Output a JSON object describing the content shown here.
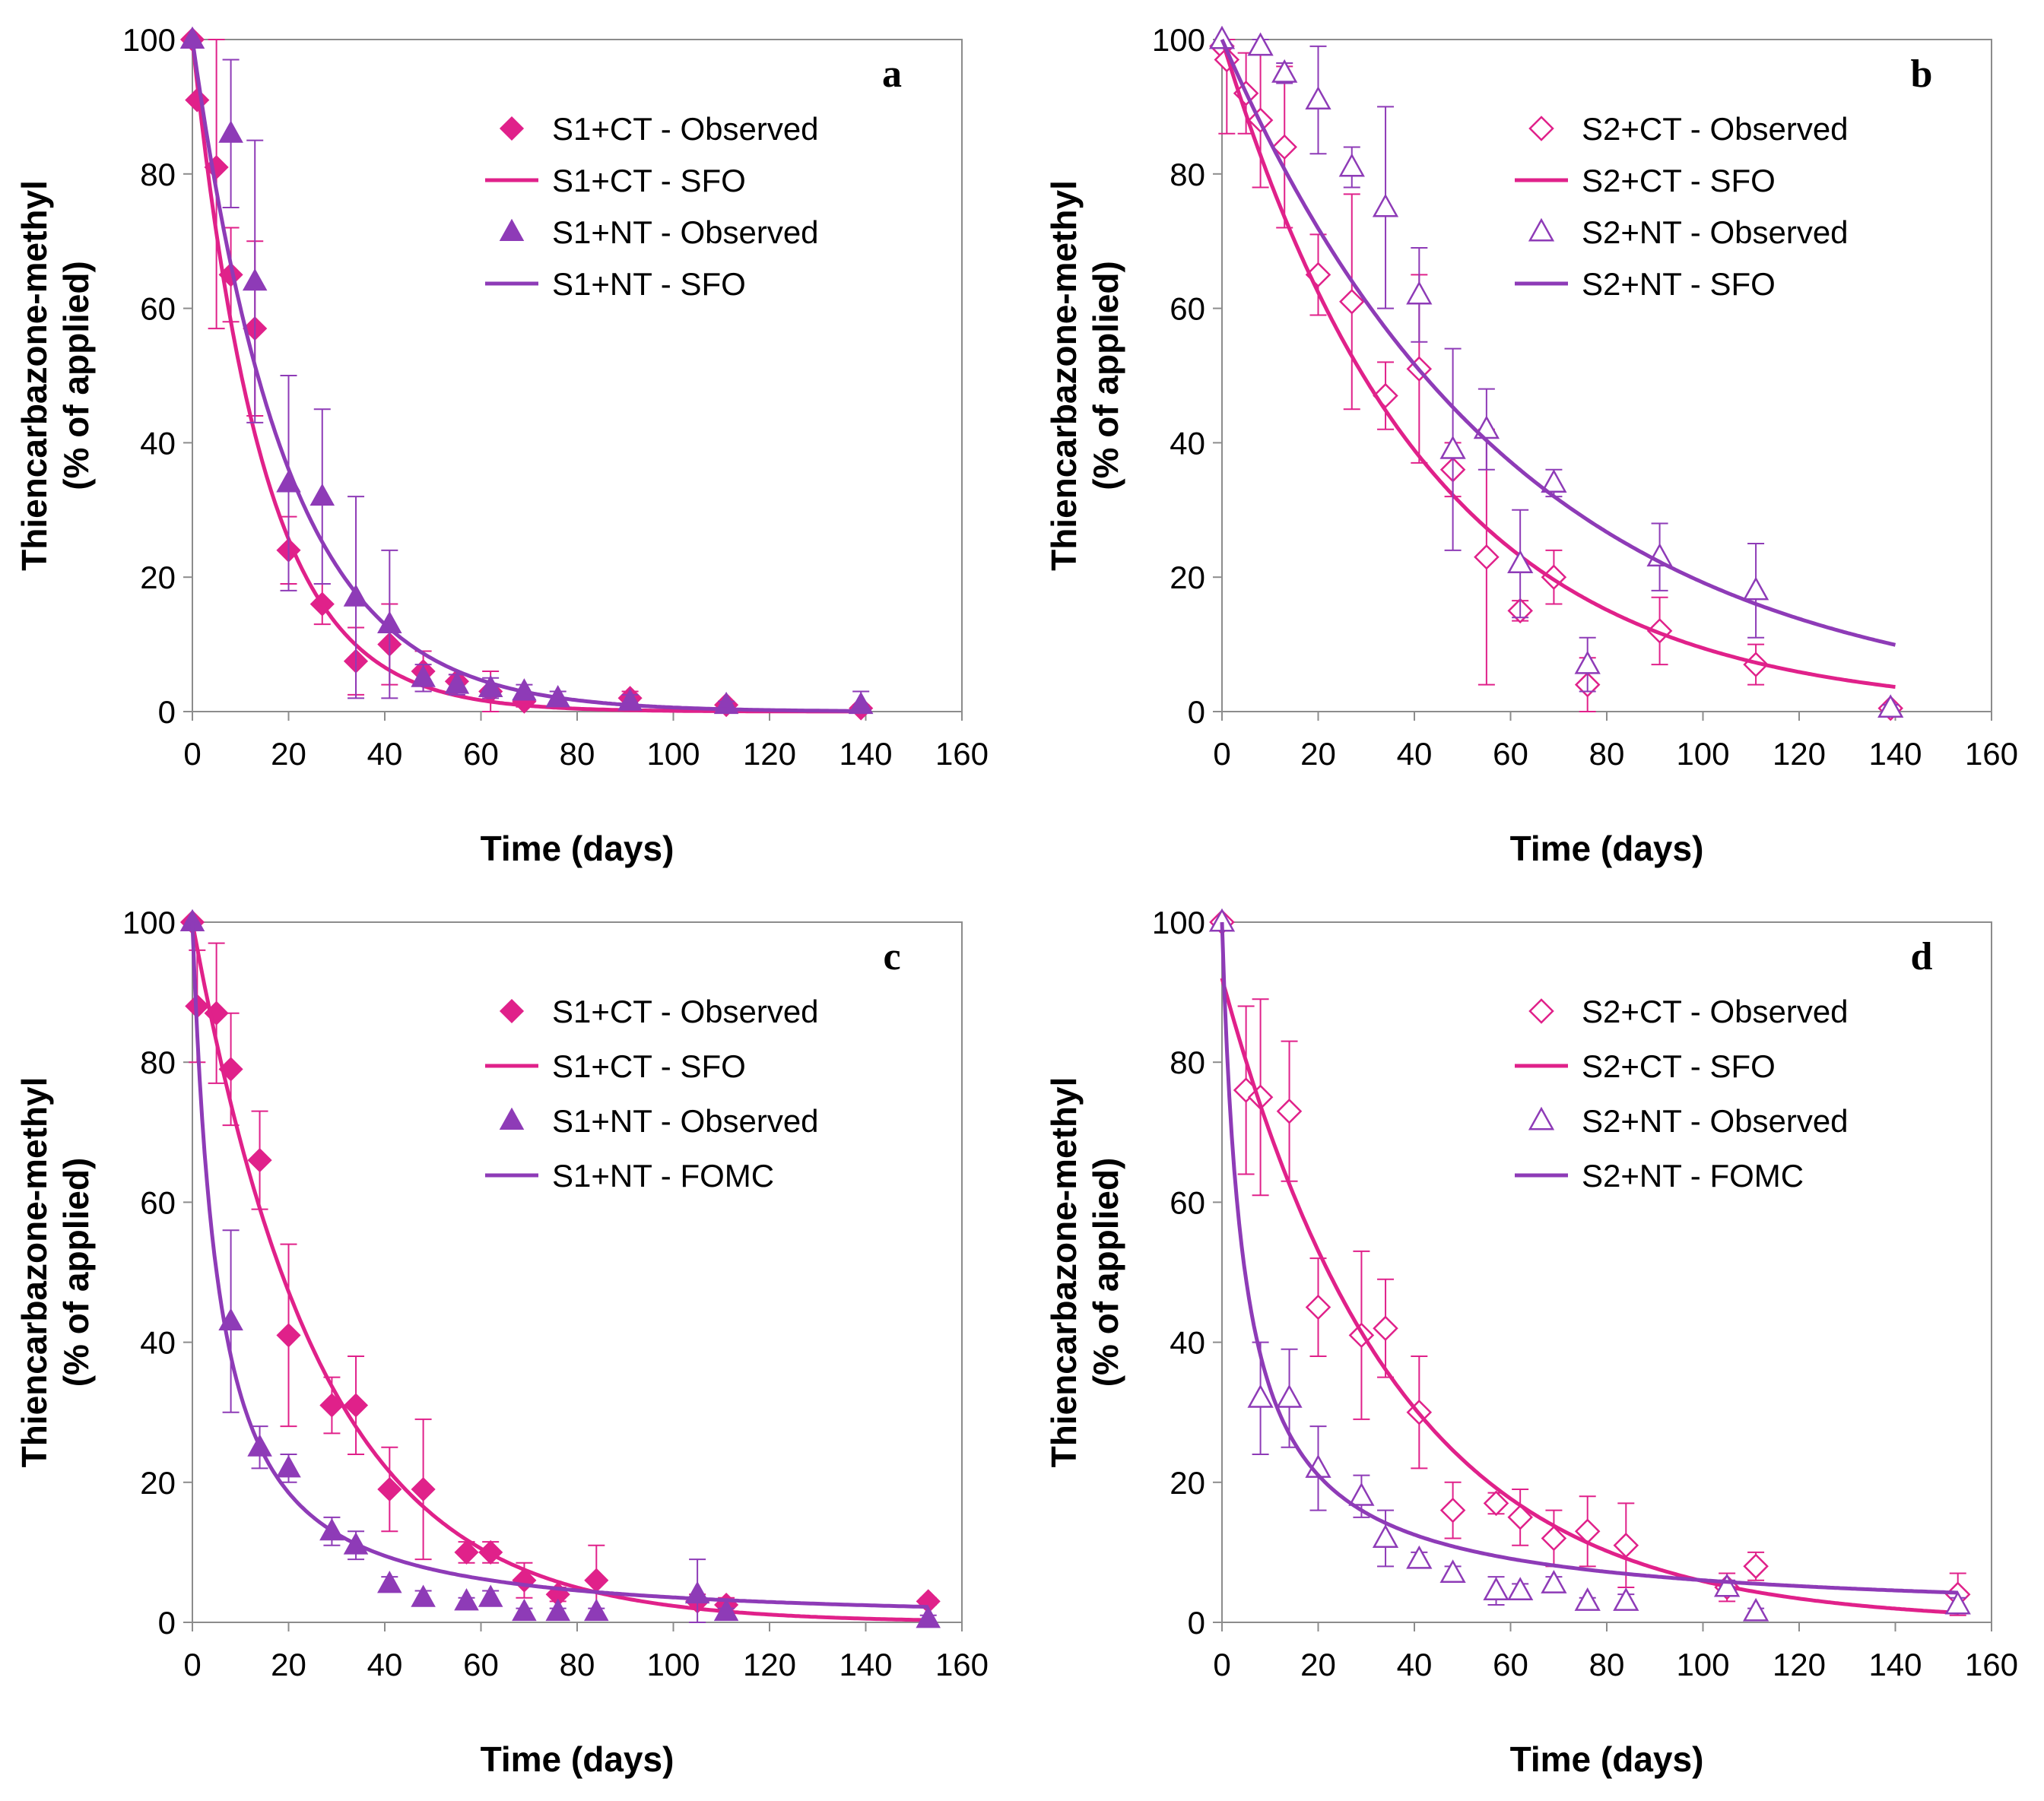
{
  "colors": {
    "ct": "#E0218A",
    "nt": "#8E3BB7",
    "axis": "#8c8c8c",
    "text": "#000000"
  },
  "chart_data": [
    {
      "type": "scatter",
      "panel": "a",
      "xlabel": "Time (days)",
      "ylabel": "Thiencarbazone-methyl",
      "ylabel2": "(% of applied)",
      "xlim": [
        0,
        160
      ],
      "ylim": [
        0,
        100
      ],
      "xticks": [
        "0",
        "20",
        "40",
        "60",
        "80",
        "100",
        "120",
        "140",
        "160"
      ],
      "yticks": [
        "0",
        "20",
        "40",
        "60",
        "80",
        "100"
      ],
      "grid": false,
      "legend_position": "top-right",
      "series": [
        {
          "name": "S1+CT - Observed",
          "kind": "points",
          "marker": "diamond",
          "filled": true,
          "color": "#E0218A",
          "x": [
            0,
            1,
            5,
            8,
            13,
            20,
            27,
            34,
            41,
            48,
            55,
            62,
            69,
            91,
            111,
            139
          ],
          "y": [
            100,
            91,
            81,
            65,
            57,
            24,
            16,
            7.5,
            10,
            6,
            4.5,
            3,
            1.5,
            2,
            1,
            0.5
          ],
          "err": [
            0,
            0,
            24,
            7,
            13,
            5,
            3,
            5,
            6,
            3,
            1,
            3,
            0.8,
            1,
            0.5,
            0.5
          ]
        },
        {
          "name": "S1+CT - SFO",
          "kind": "curve",
          "model": "SFO",
          "color": "#E0218A",
          "k": 0.068,
          "c0": 100,
          "x_end": 140
        },
        {
          "name": "S1+NT - Observed",
          "kind": "points",
          "marker": "triangle",
          "filled": true,
          "color": "#8E3BB7",
          "x": [
            0,
            8,
            13,
            20,
            27,
            34,
            41,
            48,
            55,
            62,
            69,
            76,
            91,
            111,
            139
          ],
          "y": [
            100,
            86,
            64,
            34,
            32,
            17,
            13,
            5,
            4,
            3.5,
            3,
            2,
            1.5,
            1,
            1
          ],
          "err": [
            0,
            11,
            21,
            16,
            13,
            15,
            11,
            2,
            1.5,
            1.5,
            1,
            1,
            1,
            0.5,
            2
          ]
        },
        {
          "name": "S1+NT - SFO",
          "kind": "curve",
          "model": "SFO",
          "color": "#8E3BB7",
          "k": 0.051,
          "c0": 100,
          "x_end": 140
        }
      ]
    },
    {
      "type": "scatter",
      "panel": "b",
      "xlabel": "Time (days)",
      "ylabel": "Thiencarbazone-methyl",
      "ylabel2": "(% of applied)",
      "xlim": [
        0,
        160
      ],
      "ylim": [
        0,
        100
      ],
      "xticks": [
        "0",
        "20",
        "40",
        "60",
        "80",
        "100",
        "120",
        "140",
        "160"
      ],
      "yticks": [
        "0",
        "20",
        "40",
        "60",
        "80",
        "100"
      ],
      "grid": false,
      "legend_position": "top-right",
      "series": [
        {
          "name": "S2+CT - Observed",
          "kind": "points",
          "marker": "diamond",
          "filled": false,
          "color": "#E0218A",
          "x": [
            0,
            1,
            5,
            8,
            13,
            20,
            27,
            34,
            41,
            48,
            55,
            62,
            69,
            76,
            91,
            111,
            139
          ],
          "y": [
            99,
            97,
            92,
            88,
            84,
            65,
            61,
            47,
            51,
            36,
            23,
            15,
            20,
            4,
            12,
            7,
            0.5
          ],
          "err": [
            0,
            11,
            6,
            10,
            12,
            6,
            16,
            5,
            14,
            4,
            19,
            1.5,
            4,
            4,
            5,
            3,
            0.5
          ]
        },
        {
          "name": "S2+CT - SFO",
          "kind": "curve",
          "model": "SFO",
          "color": "#E0218A",
          "k": 0.0236,
          "c0": 100,
          "x_end": 140
        },
        {
          "name": "S2+NT - Observed",
          "kind": "points",
          "marker": "triangle",
          "filled": false,
          "color": "#8E3BB7",
          "x": [
            0,
            8,
            13,
            20,
            27,
            34,
            41,
            48,
            55,
            62,
            69,
            76,
            91,
            111,
            139
          ],
          "y": [
            100,
            99,
            95,
            91,
            81,
            75,
            62,
            39,
            42,
            22,
            34,
            7,
            23,
            18,
            0.5
          ],
          "err": [
            0,
            1,
            1.5,
            8,
            3,
            15,
            7,
            15,
            6,
            8,
            2,
            4,
            5,
            7,
            0.5
          ]
        },
        {
          "name": "S2+NT - SFO",
          "kind": "curve",
          "model": "SFO",
          "color": "#8E3BB7",
          "k": 0.0165,
          "c0": 100,
          "x_end": 140
        }
      ]
    },
    {
      "type": "scatter",
      "panel": "c",
      "xlabel": "Time (days)",
      "ylabel": "Thiencarbazone-methyl",
      "ylabel2": "(% of applied)",
      "xlim": [
        0,
        160
      ],
      "ylim": [
        0,
        100
      ],
      "xticks": [
        "0",
        "20",
        "40",
        "60",
        "80",
        "100",
        "120",
        "140",
        "160"
      ],
      "yticks": [
        "0",
        "20",
        "40",
        "60",
        "80",
        "100"
      ],
      "grid": false,
      "legend_position": "top-right",
      "series": [
        {
          "name": "S1+CT - Observed",
          "kind": "points",
          "marker": "diamond",
          "filled": true,
          "color": "#E0218A",
          "x": [
            0,
            1,
            5,
            8,
            14,
            20,
            29,
            34,
            41,
            48,
            57,
            62,
            69,
            76,
            84,
            105,
            111,
            153
          ],
          "y": [
            100,
            88,
            87,
            79,
            66,
            41,
            31,
            31,
            19,
            19,
            10,
            10,
            6,
            4,
            6,
            3,
            2.5,
            3
          ],
          "err": [
            0,
            8,
            10,
            8,
            7,
            13,
            4,
            7,
            6,
            10,
            1.5,
            1.5,
            2.5,
            1,
            5,
            1,
            1,
            0.5
          ]
        },
        {
          "name": "S1+CT - SFO",
          "kind": "curve",
          "model": "SFO",
          "color": "#E0218A",
          "k": 0.0375,
          "c0": 100,
          "x_end": 153
        },
        {
          "name": "S1+NT - Observed",
          "kind": "points",
          "marker": "triangle",
          "filled": true,
          "color": "#8E3BB7",
          "x": [
            0,
            8,
            14,
            20,
            29,
            34,
            41,
            48,
            57,
            62,
            69,
            76,
            84,
            105,
            111,
            153
          ],
          "y": [
            100,
            43,
            25,
            22,
            13,
            11,
            5.5,
            3.5,
            3,
            3.5,
            1.5,
            1.5,
            1.5,
            4,
            1.5,
            0.5
          ],
          "err": [
            0,
            13,
            3,
            2,
            2,
            2,
            1,
            1,
            0.5,
            1,
            0.5,
            0.5,
            0.5,
            5,
            0.5,
            0.5
          ]
        },
        {
          "name": "S1+NT - FOMC",
          "kind": "curve",
          "model": "FOMC",
          "color": "#8E3BB7",
          "alpha": 1.18,
          "beta": 6.3,
          "c0": 100,
          "x_end": 153
        }
      ]
    },
    {
      "type": "scatter",
      "panel": "d",
      "xlabel": "Time (days)",
      "ylabel": "Thiencarbazone-methyl",
      "ylabel2": "(% of applied)",
      "xlim": [
        0,
        160
      ],
      "ylim": [
        0,
        100
      ],
      "xticks": [
        "0",
        "20",
        "40",
        "60",
        "80",
        "100",
        "120",
        "140",
        "160"
      ],
      "yticks": [
        "0",
        "20",
        "40",
        "60",
        "80",
        "100"
      ],
      "grid": false,
      "legend_position": "top-right",
      "series": [
        {
          "name": "S2+CT - Observed",
          "kind": "points",
          "marker": "diamond",
          "filled": false,
          "color": "#E0218A",
          "x": [
            0,
            5,
            8,
            14,
            20,
            29,
            34,
            41,
            48,
            57,
            62,
            69,
            76,
            84,
            105,
            111,
            153
          ],
          "y": [
            100,
            76,
            75,
            73,
            45,
            41,
            42,
            30,
            16,
            17,
            15,
            12,
            13,
            11,
            5,
            8,
            4
          ],
          "err": [
            0,
            12,
            14,
            10,
            7,
            12,
            7,
            8,
            4,
            1.5,
            4,
            4,
            5,
            6,
            2,
            2,
            3
          ]
        },
        {
          "name": "S2+CT - SFO",
          "kind": "curve",
          "model": "SFO",
          "color": "#E0218A",
          "k": 0.0275,
          "c0": 92,
          "x_end": 153
        },
        {
          "name": "S2+NT - Observed",
          "kind": "points",
          "marker": "triangle",
          "filled": false,
          "color": "#8E3BB7",
          "x": [
            0,
            8,
            14,
            20,
            29,
            34,
            41,
            48,
            57,
            62,
            69,
            76,
            84,
            105,
            111,
            153
          ],
          "y": [
            100,
            32,
            32,
            22,
            18,
            12,
            9,
            7,
            4.5,
            4.5,
            5.5,
            3,
            3,
            5,
            1.5,
            2.5
          ],
          "err": [
            0,
            8,
            7,
            6,
            3,
            4,
            1,
            1,
            2,
            1,
            1,
            0.5,
            1,
            1,
            0.5,
            1
          ]
        },
        {
          "name": "S2+NT - FOMC",
          "kind": "curve",
          "model": "FOMC",
          "color": "#8E3BB7",
          "alpha": 0.85,
          "beta": 3.8,
          "c0": 100,
          "x_end": 153
        }
      ]
    }
  ]
}
